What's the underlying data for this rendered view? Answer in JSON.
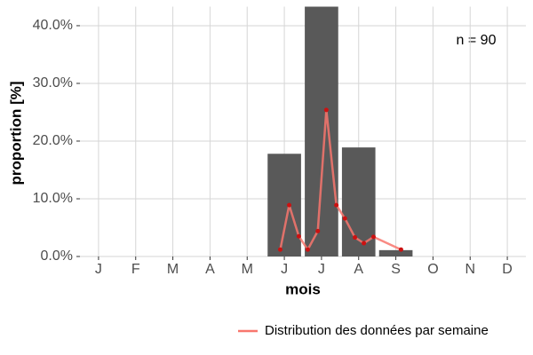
{
  "chart_data": {
    "type": "bar",
    "categories": [
      "J",
      "F",
      "M",
      "A",
      "M",
      "J",
      "J",
      "A",
      "S",
      "O",
      "N",
      "D"
    ],
    "values": [
      0,
      0,
      0,
      0,
      0,
      17.8,
      43.3,
      18.9,
      1.1,
      0,
      0,
      0
    ],
    "color": "#595959",
    "xlabel": "mois",
    "ylabel": "proportion [%]",
    "annotation": "n = 90",
    "ylim": [
      0,
      43.3
    ],
    "yticks": [
      {
        "value": 0,
        "label": "0.0%"
      },
      {
        "value": 10,
        "label": "10.0%"
      },
      {
        "value": 20,
        "label": "20.0%"
      },
      {
        "value": 30,
        "label": "30.0%"
      },
      {
        "value": 40,
        "label": "40.0%"
      }
    ],
    "grid": true,
    "legend": "bottom-right",
    "overlay": {
      "type": "line",
      "name": "Distribution des données par semaine",
      "color": "#f8766d",
      "point_color": "#cc1111",
      "xlim": [
        0.5,
        12.5
      ],
      "x": [
        5.89,
        6.13,
        6.39,
        6.63,
        6.9,
        7.13,
        7.4,
        7.63,
        7.9,
        8.14,
        8.4,
        9.14
      ],
      "values": [
        1.2,
        8.9,
        3.5,
        1.2,
        4.4,
        25.4,
        8.9,
        6.6,
        3.3,
        2.3,
        3.4,
        1.2
      ]
    }
  }
}
